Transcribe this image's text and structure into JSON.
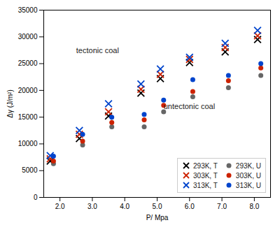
{
  "chart_data": {
    "type": "scatter",
    "xlabel": "P/ Mpa",
    "ylabel": "Δγ (J/m²)",
    "xlim": [
      1.5,
      8.5
    ],
    "ylim": [
      0,
      35000
    ],
    "xticks": [
      2,
      3,
      4,
      5,
      6,
      7,
      8
    ],
    "yticks": [
      0,
      5000,
      10000,
      15000,
      20000,
      25000,
      30000,
      35000
    ],
    "legend": "lower right",
    "annotations": [
      {
        "x": 2.5,
        "y": 27000,
        "text": "tectonic coal"
      },
      {
        "x": 5.2,
        "y": 16500,
        "text": "untectonic coal"
      }
    ],
    "series": [
      {
        "name": "293K, T",
        "marker": "x",
        "color": "black",
        "x": [
          1.7,
          2.6,
          3.5,
          4.5,
          5.1,
          6.0,
          7.1,
          8.1
        ],
        "values": [
          6800,
          11000,
          15200,
          19500,
          22200,
          25200,
          27200,
          29500
        ]
      },
      {
        "name": "303K, T",
        "marker": "x",
        "color": "#cc2200",
        "x": [
          1.7,
          2.6,
          3.5,
          4.5,
          5.1,
          6.0,
          7.1,
          8.1
        ],
        "values": [
          7200,
          11800,
          16000,
          20200,
          23000,
          25800,
          28000,
          30200
        ]
      },
      {
        "name": "313K, T",
        "marker": "x",
        "color": "#0044cc",
        "x": [
          1.7,
          2.6,
          3.5,
          4.5,
          5.1,
          6.0,
          7.1,
          8.1
        ],
        "values": [
          7800,
          12500,
          17500,
          21200,
          24000,
          26200,
          28800,
          31200
        ]
      },
      {
        "name": "293K, U",
        "marker": "o",
        "color": "#666666",
        "x": [
          1.8,
          2.7,
          3.6,
          4.6,
          5.2,
          6.1,
          7.2,
          8.2
        ],
        "values": [
          6300,
          9800,
          13200,
          13200,
          16000,
          18800,
          20500,
          22800
        ]
      },
      {
        "name": "303K, U",
        "marker": "o",
        "color": "#cc2200",
        "x": [
          1.8,
          2.7,
          3.6,
          4.6,
          5.2,
          6.1,
          7.2,
          8.2
        ],
        "values": [
          6800,
          10500,
          14000,
          14500,
          17200,
          19800,
          21800,
          24200
        ]
      },
      {
        "name": "313K, U",
        "marker": "o",
        "color": "#0044cc",
        "x": [
          1.8,
          2.7,
          3.6,
          4.6,
          5.2,
          6.1,
          7.2,
          8.2
        ],
        "values": [
          7700,
          11800,
          15000,
          15500,
          18200,
          22000,
          22800,
          25000
        ]
      }
    ]
  }
}
